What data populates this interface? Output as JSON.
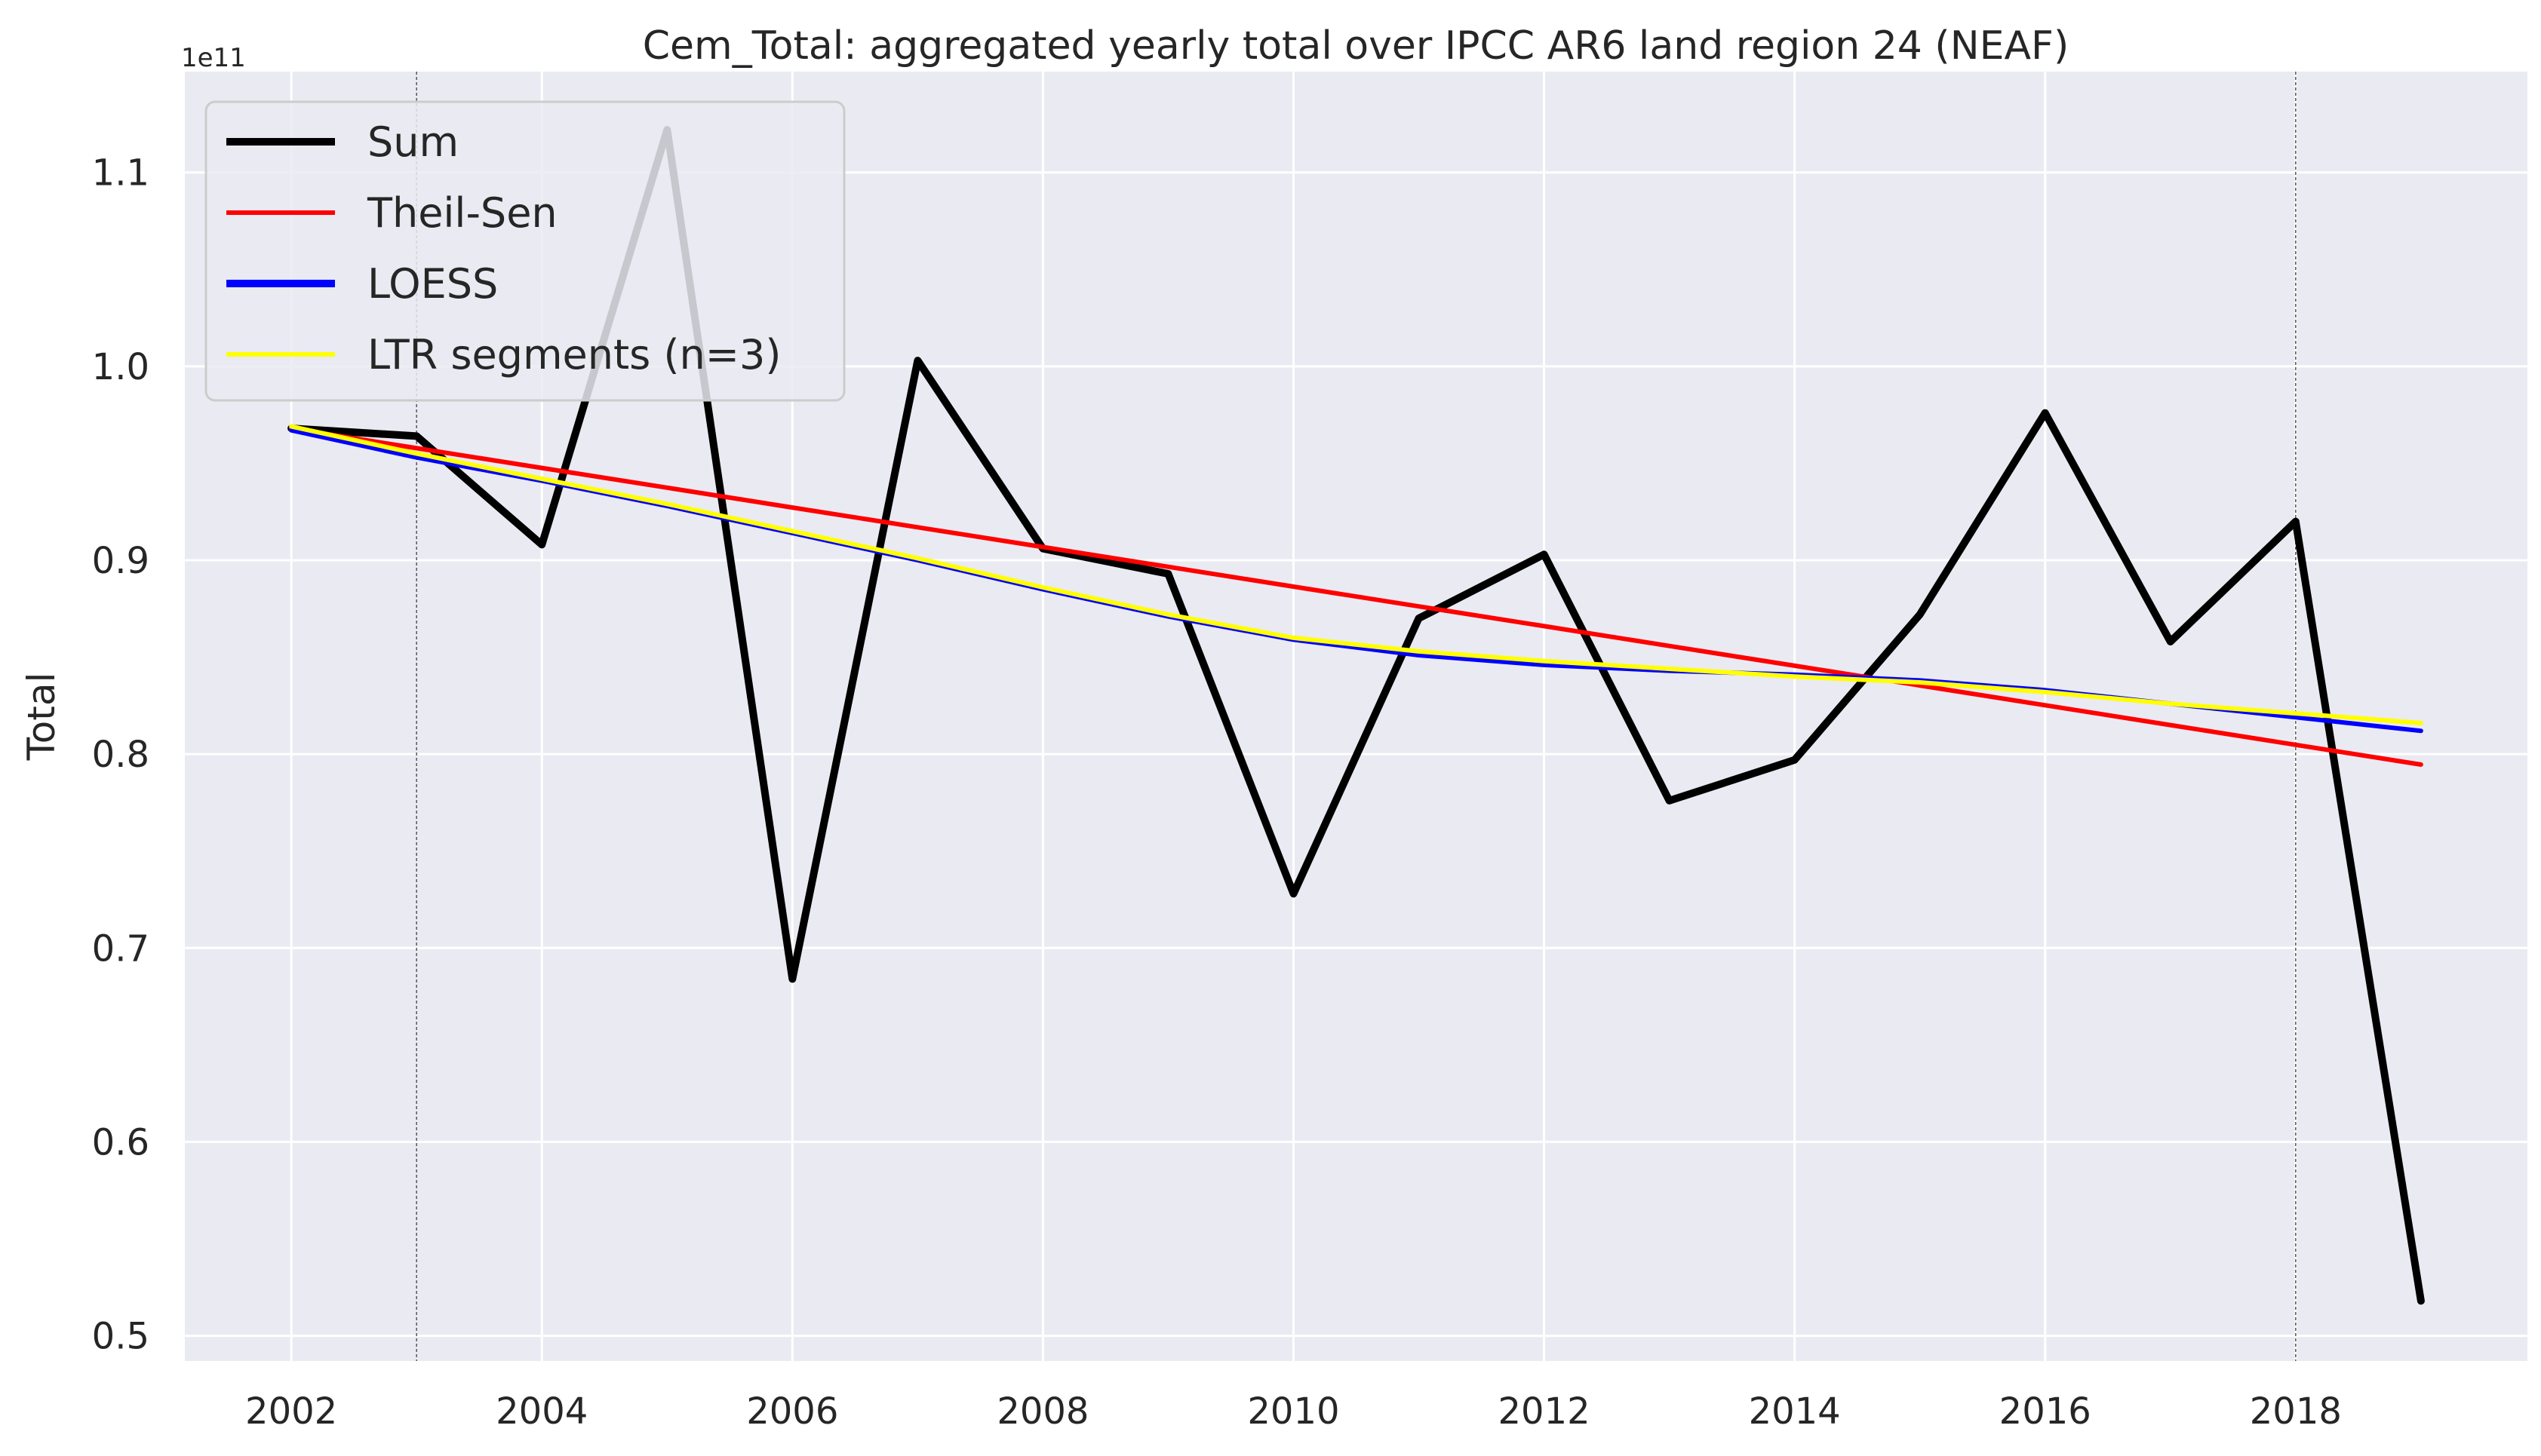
{
  "chart_data": {
    "type": "line",
    "title": "Cem_Total: aggregated yearly total over IPCC AR6 land region 24 (NEAF)",
    "ylabel": "Total",
    "xlabel": "",
    "y_offset_label": "1e11",
    "x": [
      2002,
      2003,
      2004,
      2005,
      2006,
      2007,
      2008,
      2009,
      2010,
      2011,
      2012,
      2013,
      2014,
      2015,
      2016,
      2017,
      2018,
      2019
    ],
    "series": [
      {
        "name": "Sum",
        "color": "#000000",
        "values": [
          0.968,
          0.964,
          0.908,
          1.122,
          0.684,
          1.003,
          0.906,
          0.893,
          0.728,
          0.87,
          0.903,
          0.776,
          0.797,
          0.872,
          0.976,
          0.858,
          0.92,
          0.518
        ]
      },
      {
        "name": "Theil-Sen",
        "color": "#ff0000",
        "values": [
          0.968,
          0.9578,
          0.9476,
          0.9374,
          0.9272,
          0.917,
          0.9068,
          0.8966,
          0.8864,
          0.8762,
          0.866,
          0.8558,
          0.8456,
          0.8354,
          0.8252,
          0.815,
          0.8048,
          0.7946
        ]
      },
      {
        "name": "LOESS",
        "color": "#0000ff",
        "values": [
          0.967,
          0.953,
          0.941,
          0.928,
          0.914,
          0.9,
          0.885,
          0.871,
          0.859,
          0.851,
          0.846,
          0.843,
          0.841,
          0.838,
          0.833,
          0.826,
          0.819,
          0.812
        ]
      },
      {
        "name": "LTR segments (n=3)",
        "color": "#ffff00",
        "values": [
          0.969,
          0.955,
          0.942,
          0.929,
          0.915,
          0.901,
          0.886,
          0.872,
          0.86,
          0.853,
          0.848,
          0.844,
          0.84,
          0.837,
          0.832,
          0.826,
          0.821,
          0.816
        ]
      }
    ],
    "vertical_lines": [
      2003,
      2018
    ],
    "xlim": [
      2001.15,
      2019.85
    ],
    "ylim": [
      0.487,
      1.152
    ],
    "x_ticks": [
      2002,
      2004,
      2006,
      2008,
      2010,
      2012,
      2014,
      2016,
      2018
    ],
    "y_ticks": [
      0.5,
      0.6,
      0.7,
      0.8,
      0.9,
      1.0,
      1.1
    ],
    "y_tick_labels": [
      "0.5",
      "0.6",
      "0.7",
      "0.8",
      "0.9",
      "1.0",
      "1.1"
    ],
    "grid": true,
    "legend_position": "top-left",
    "background_color": "#eaeaf2"
  }
}
